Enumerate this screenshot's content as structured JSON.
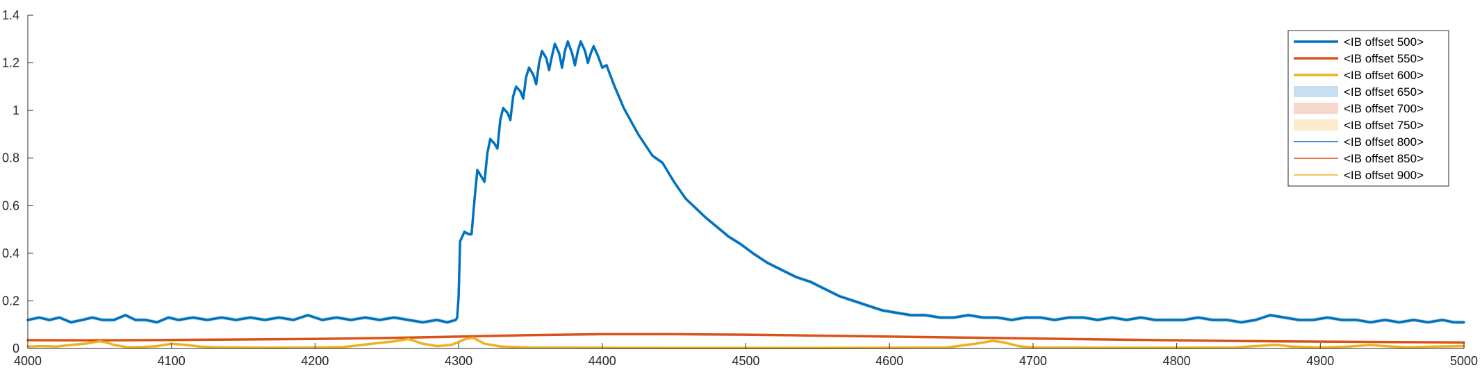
{
  "chart_data": {
    "type": "line",
    "title": "",
    "xlabel": "",
    "ylabel": "",
    "xlim": [
      4000,
      5000
    ],
    "ylim": [
      0,
      1.4
    ],
    "x_ticks": [
      4000,
      4100,
      4200,
      4300,
      4400,
      4500,
      4600,
      4700,
      4800,
      4900,
      5000
    ],
    "y_ticks": [
      0,
      0.2,
      0.4,
      0.6,
      0.8,
      1,
      1.2,
      1.4
    ],
    "x_tick_labels": [
      "4000",
      "4100",
      "4200",
      "4300",
      "4400",
      "4500",
      "4600",
      "4700",
      "4800",
      "4900",
      "5000"
    ],
    "y_tick_labels": [
      "0",
      "0.2",
      "0.4",
      "0.6",
      "0.8",
      "1",
      "1.2",
      "1.4"
    ],
    "grid": false,
    "legend_position": "top-right",
    "colors": {
      "blue": "#0072BD",
      "orange": "#D95319",
      "yellow": "#EDB120",
      "axis": "#262626"
    },
    "legend": [
      {
        "label": "<IB offset 500>",
        "style": "line-thick",
        "color": "#0072BD"
      },
      {
        "label": "<IB offset 550>",
        "style": "line-thick",
        "color": "#D95319"
      },
      {
        "label": "<IB offset 600>",
        "style": "line-thick",
        "color": "#EDB120"
      },
      {
        "label": "<IB offset 650>",
        "style": "patch",
        "color": "#C9DFF0"
      },
      {
        "label": "<IB offset 700>",
        "style": "patch",
        "color": "#F6D9CC"
      },
      {
        "label": "<IB offset 750>",
        "style": "patch",
        "color": "#FAEBCB"
      },
      {
        "label": "<IB offset 800>",
        "style": "line-thin",
        "color": "#0072BD"
      },
      {
        "label": "<IB offset 850>",
        "style": "line-thin",
        "color": "#D95319"
      },
      {
        "label": "<IB offset 900>",
        "style": "line-thin",
        "color": "#EDB120"
      }
    ],
    "series": [
      {
        "color": "#0072BD",
        "band_color": "#C9DFF0",
        "band_halfwidth": 0.008,
        "points": [
          [
            4000,
            0.12
          ],
          [
            4008,
            0.13
          ],
          [
            4015,
            0.12
          ],
          [
            4022,
            0.13
          ],
          [
            4030,
            0.11
          ],
          [
            4038,
            0.12
          ],
          [
            4045,
            0.13
          ],
          [
            4052,
            0.12
          ],
          [
            4060,
            0.12
          ],
          [
            4068,
            0.14
          ],
          [
            4075,
            0.12
          ],
          [
            4082,
            0.12
          ],
          [
            4090,
            0.11
          ],
          [
            4098,
            0.13
          ],
          [
            4105,
            0.12
          ],
          [
            4115,
            0.13
          ],
          [
            4125,
            0.12
          ],
          [
            4135,
            0.13
          ],
          [
            4145,
            0.12
          ],
          [
            4155,
            0.13
          ],
          [
            4165,
            0.12
          ],
          [
            4175,
            0.13
          ],
          [
            4185,
            0.12
          ],
          [
            4195,
            0.14
          ],
          [
            4205,
            0.12
          ],
          [
            4215,
            0.13
          ],
          [
            4225,
            0.12
          ],
          [
            4235,
            0.13
          ],
          [
            4245,
            0.12
          ],
          [
            4255,
            0.13
          ],
          [
            4265,
            0.12
          ],
          [
            4275,
            0.11
          ],
          [
            4285,
            0.12
          ],
          [
            4292,
            0.11
          ],
          [
            4298,
            0.12
          ],
          [
            4299,
            0.13
          ],
          [
            4300,
            0.22
          ],
          [
            4301,
            0.45
          ],
          [
            4304,
            0.49
          ],
          [
            4307,
            0.48
          ],
          [
            4309,
            0.48
          ],
          [
            4311,
            0.62
          ],
          [
            4313,
            0.75
          ],
          [
            4316,
            0.72
          ],
          [
            4318,
            0.7
          ],
          [
            4320,
            0.82
          ],
          [
            4322,
            0.88
          ],
          [
            4325,
            0.86
          ],
          [
            4327,
            0.84
          ],
          [
            4329,
            0.96
          ],
          [
            4331,
            1.01
          ],
          [
            4334,
            0.99
          ],
          [
            4336,
            0.96
          ],
          [
            4338,
            1.06
          ],
          [
            4340,
            1.1
          ],
          [
            4343,
            1.08
          ],
          [
            4345,
            1.05
          ],
          [
            4347,
            1.14
          ],
          [
            4349,
            1.18
          ],
          [
            4352,
            1.15
          ],
          [
            4354,
            1.11
          ],
          [
            4356,
            1.2
          ],
          [
            4358,
            1.25
          ],
          [
            4361,
            1.22
          ],
          [
            4363,
            1.17
          ],
          [
            4365,
            1.23
          ],
          [
            4367,
            1.28
          ],
          [
            4370,
            1.24
          ],
          [
            4372,
            1.18
          ],
          [
            4374,
            1.25
          ],
          [
            4376,
            1.29
          ],
          [
            4379,
            1.24
          ],
          [
            4381,
            1.19
          ],
          [
            4383,
            1.25
          ],
          [
            4385,
            1.29
          ],
          [
            4388,
            1.25
          ],
          [
            4390,
            1.2
          ],
          [
            4392,
            1.24
          ],
          [
            4394,
            1.27
          ],
          [
            4397,
            1.23
          ],
          [
            4400,
            1.18
          ],
          [
            4403,
            1.19
          ],
          [
            4408,
            1.11
          ],
          [
            4415,
            1.01
          ],
          [
            4425,
            0.9
          ],
          [
            4435,
            0.81
          ],
          [
            4442,
            0.78
          ],
          [
            4450,
            0.7
          ],
          [
            4458,
            0.63
          ],
          [
            4465,
            0.59
          ],
          [
            4472,
            0.55
          ],
          [
            4480,
            0.51
          ],
          [
            4488,
            0.47
          ],
          [
            4496,
            0.44
          ],
          [
            4505,
            0.4
          ],
          [
            4515,
            0.36
          ],
          [
            4525,
            0.33
          ],
          [
            4535,
            0.3
          ],
          [
            4545,
            0.28
          ],
          [
            4555,
            0.25
          ],
          [
            4565,
            0.22
          ],
          [
            4575,
            0.2
          ],
          [
            4585,
            0.18
          ],
          [
            4595,
            0.16
          ],
          [
            4605,
            0.15
          ],
          [
            4615,
            0.14
          ],
          [
            4625,
            0.14
          ],
          [
            4635,
            0.13
          ],
          [
            4645,
            0.13
          ],
          [
            4655,
            0.14
          ],
          [
            4665,
            0.13
          ],
          [
            4675,
            0.13
          ],
          [
            4685,
            0.12
          ],
          [
            4695,
            0.13
          ],
          [
            4705,
            0.13
          ],
          [
            4715,
            0.12
          ],
          [
            4725,
            0.13
          ],
          [
            4735,
            0.13
          ],
          [
            4745,
            0.12
          ],
          [
            4755,
            0.13
          ],
          [
            4765,
            0.12
          ],
          [
            4775,
            0.13
          ],
          [
            4785,
            0.12
          ],
          [
            4795,
            0.12
          ],
          [
            4805,
            0.12
          ],
          [
            4815,
            0.13
          ],
          [
            4825,
            0.12
          ],
          [
            4835,
            0.12
          ],
          [
            4845,
            0.11
          ],
          [
            4855,
            0.12
          ],
          [
            4865,
            0.14
          ],
          [
            4875,
            0.13
          ],
          [
            4885,
            0.12
          ],
          [
            4895,
            0.12
          ],
          [
            4905,
            0.13
          ],
          [
            4915,
            0.12
          ],
          [
            4925,
            0.12
          ],
          [
            4935,
            0.11
          ],
          [
            4945,
            0.12
          ],
          [
            4955,
            0.11
          ],
          [
            4965,
            0.12
          ],
          [
            4975,
            0.11
          ],
          [
            4985,
            0.12
          ],
          [
            4993,
            0.11
          ],
          [
            5000,
            0.11
          ]
        ]
      },
      {
        "color": "#D95319",
        "band_color": "#F6D9CC",
        "band_halfwidth": 0.003,
        "points": [
          [
            4000,
            0.035
          ],
          [
            4050,
            0.034
          ],
          [
            4100,
            0.036
          ],
          [
            4150,
            0.038
          ],
          [
            4200,
            0.04
          ],
          [
            4250,
            0.044
          ],
          [
            4300,
            0.05
          ],
          [
            4350,
            0.056
          ],
          [
            4400,
            0.06
          ],
          [
            4450,
            0.06
          ],
          [
            4500,
            0.058
          ],
          [
            4550,
            0.054
          ],
          [
            4600,
            0.05
          ],
          [
            4650,
            0.046
          ],
          [
            4700,
            0.042
          ],
          [
            4750,
            0.038
          ],
          [
            4800,
            0.034
          ],
          [
            4850,
            0.031
          ],
          [
            4900,
            0.029
          ],
          [
            4950,
            0.027
          ],
          [
            5000,
            0.025
          ]
        ]
      },
      {
        "color": "#EDB120",
        "band_color": "#FAEBCB",
        "band_halfwidth": 0.004,
        "points": [
          [
            4000,
            0.008
          ],
          [
            4010,
            0.01
          ],
          [
            4020,
            0.008
          ],
          [
            4030,
            0.015
          ],
          [
            4040,
            0.02
          ],
          [
            4050,
            0.03
          ],
          [
            4055,
            0.025
          ],
          [
            4060,
            0.015
          ],
          [
            4070,
            0.005
          ],
          [
            4080,
            0.006
          ],
          [
            4090,
            0.01
          ],
          [
            4100,
            0.02
          ],
          [
            4110,
            0.015
          ],
          [
            4120,
            0.008
          ],
          [
            4130,
            0.005
          ],
          [
            4150,
            0.004
          ],
          [
            4170,
            0.003
          ],
          [
            4200,
            0.004
          ],
          [
            4220,
            0.006
          ],
          [
            4240,
            0.02
          ],
          [
            4255,
            0.03
          ],
          [
            4265,
            0.04
          ],
          [
            4270,
            0.03
          ],
          [
            4275,
            0.02
          ],
          [
            4285,
            0.01
          ],
          [
            4295,
            0.015
          ],
          [
            4305,
            0.04
          ],
          [
            4310,
            0.045
          ],
          [
            4318,
            0.02
          ],
          [
            4330,
            0.008
          ],
          [
            4350,
            0.004
          ],
          [
            4400,
            0.003
          ],
          [
            4450,
            0.002
          ],
          [
            4500,
            0.002
          ],
          [
            4550,
            0.002
          ],
          [
            4600,
            0.003
          ],
          [
            4640,
            0.004
          ],
          [
            4660,
            0.02
          ],
          [
            4672,
            0.032
          ],
          [
            4680,
            0.025
          ],
          [
            4690,
            0.01
          ],
          [
            4700,
            0.004
          ],
          [
            4750,
            0.003
          ],
          [
            4800,
            0.003
          ],
          [
            4840,
            0.004
          ],
          [
            4860,
            0.012
          ],
          [
            4870,
            0.015
          ],
          [
            4880,
            0.008
          ],
          [
            4900,
            0.004
          ],
          [
            4920,
            0.008
          ],
          [
            4935,
            0.015
          ],
          [
            4945,
            0.01
          ],
          [
            4960,
            0.005
          ],
          [
            4980,
            0.008
          ],
          [
            5000,
            0.01
          ]
        ]
      }
    ]
  }
}
